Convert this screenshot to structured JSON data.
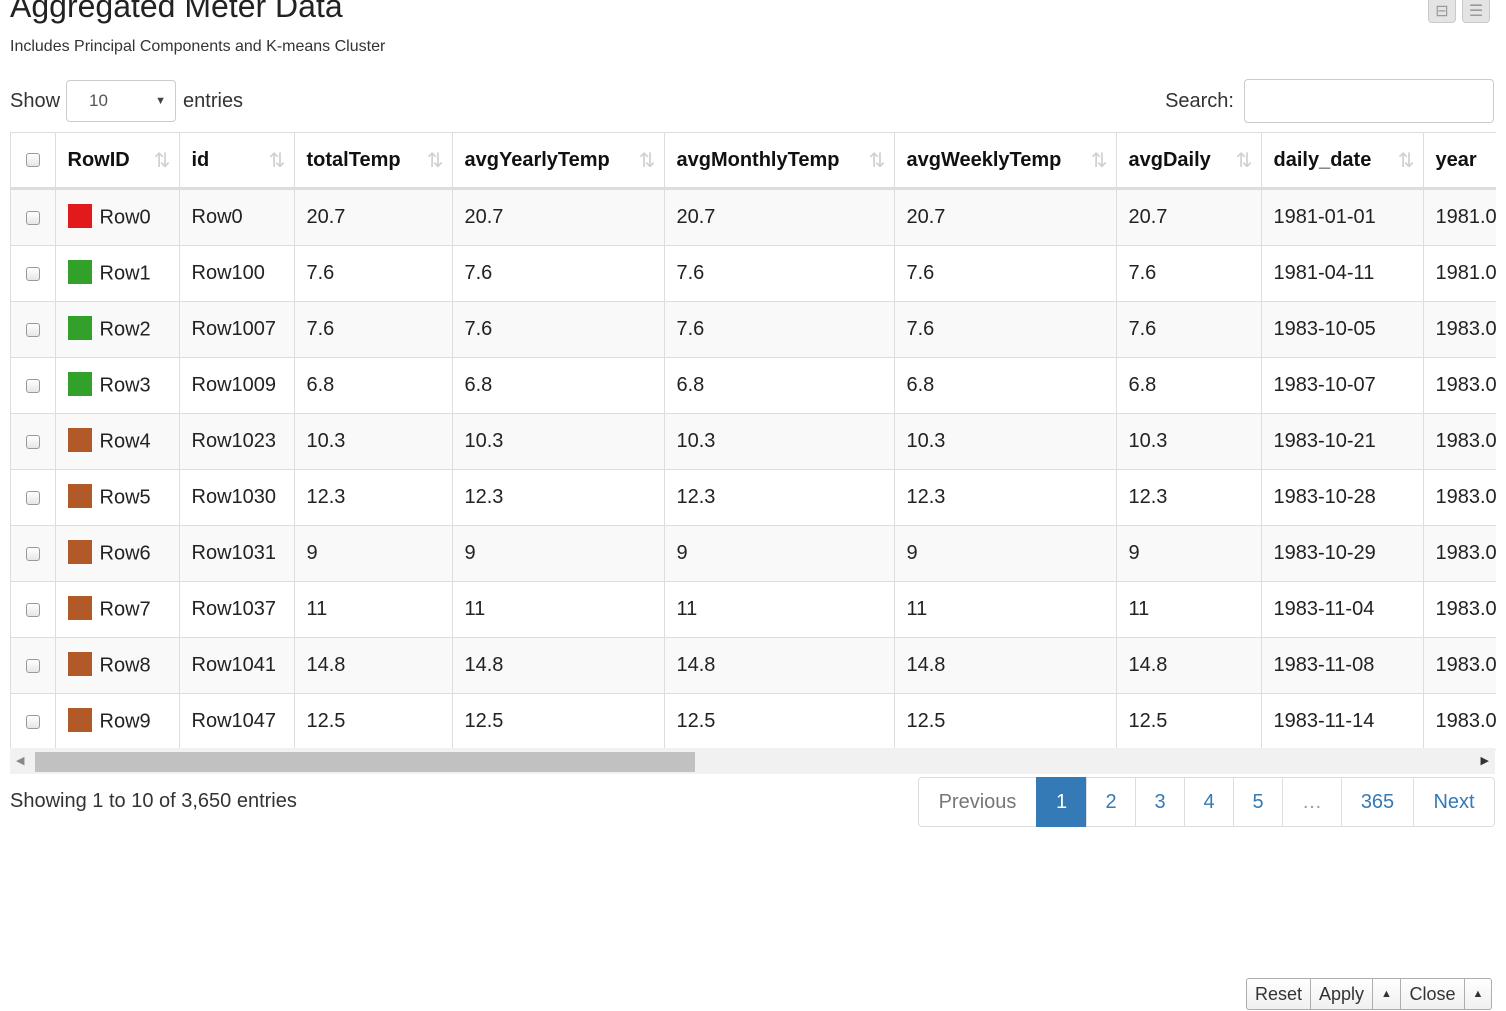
{
  "header": {
    "title": "Aggregated Meter Data",
    "subtitle": "Includes Principal Components and K-means Cluster",
    "icons": [
      "minimize-icon",
      "menu-icon"
    ]
  },
  "length": {
    "show_label": "Show",
    "selected": "10",
    "entries_label": "entries"
  },
  "search": {
    "label": "Search:",
    "value": ""
  },
  "table": {
    "columns": [
      "RowID",
      "id",
      "totalTemp",
      "avgYearlyTemp",
      "avgMonthlyTemp",
      "avgWeeklyTemp",
      "avgDaily",
      "daily_date",
      "year"
    ],
    "rows": [
      {
        "rowid": "Row0",
        "color": "#e31a1c",
        "id": "Row0",
        "totalTemp": "20.7",
        "avgYearlyTemp": "20.7",
        "avgMonthlyTemp": "20.7",
        "avgWeeklyTemp": "20.7",
        "avgDaily": "20.7",
        "daily_date": "1981-01-01",
        "year": "1981.0"
      },
      {
        "rowid": "Row1",
        "color": "#33a02c",
        "id": "Row100",
        "totalTemp": "7.6",
        "avgYearlyTemp": "7.6",
        "avgMonthlyTemp": "7.6",
        "avgWeeklyTemp": "7.6",
        "avgDaily": "7.6",
        "daily_date": "1981-04-11",
        "year": "1981.0"
      },
      {
        "rowid": "Row2",
        "color": "#33a02c",
        "id": "Row1007",
        "totalTemp": "7.6",
        "avgYearlyTemp": "7.6",
        "avgMonthlyTemp": "7.6",
        "avgWeeklyTemp": "7.6",
        "avgDaily": "7.6",
        "daily_date": "1983-10-05",
        "year": "1983.0"
      },
      {
        "rowid": "Row3",
        "color": "#33a02c",
        "id": "Row1009",
        "totalTemp": "6.8",
        "avgYearlyTemp": "6.8",
        "avgMonthlyTemp": "6.8",
        "avgWeeklyTemp": "6.8",
        "avgDaily": "6.8",
        "daily_date": "1983-10-07",
        "year": "1983.0"
      },
      {
        "rowid": "Row4",
        "color": "#b15928",
        "id": "Row1023",
        "totalTemp": "10.3",
        "avgYearlyTemp": "10.3",
        "avgMonthlyTemp": "10.3",
        "avgWeeklyTemp": "10.3",
        "avgDaily": "10.3",
        "daily_date": "1983-10-21",
        "year": "1983.0"
      },
      {
        "rowid": "Row5",
        "color": "#b15928",
        "id": "Row1030",
        "totalTemp": "12.3",
        "avgYearlyTemp": "12.3",
        "avgMonthlyTemp": "12.3",
        "avgWeeklyTemp": "12.3",
        "avgDaily": "12.3",
        "daily_date": "1983-10-28",
        "year": "1983.0"
      },
      {
        "rowid": "Row6",
        "color": "#b15928",
        "id": "Row1031",
        "totalTemp": "9",
        "avgYearlyTemp": "9",
        "avgMonthlyTemp": "9",
        "avgWeeklyTemp": "9",
        "avgDaily": "9",
        "daily_date": "1983-10-29",
        "year": "1983.0"
      },
      {
        "rowid": "Row7",
        "color": "#b15928",
        "id": "Row1037",
        "totalTemp": "11",
        "avgYearlyTemp": "11",
        "avgMonthlyTemp": "11",
        "avgWeeklyTemp": "11",
        "avgDaily": "11",
        "daily_date": "1983-11-04",
        "year": "1983.0"
      },
      {
        "rowid": "Row8",
        "color": "#b15928",
        "id": "Row1041",
        "totalTemp": "14.8",
        "avgYearlyTemp": "14.8",
        "avgMonthlyTemp": "14.8",
        "avgWeeklyTemp": "14.8",
        "avgDaily": "14.8",
        "daily_date": "1983-11-08",
        "year": "1983.0"
      },
      {
        "rowid": "Row9",
        "color": "#b15928",
        "id": "Row1047",
        "totalTemp": "12.5",
        "avgYearlyTemp": "12.5",
        "avgMonthlyTemp": "12.5",
        "avgWeeklyTemp": "12.5",
        "avgDaily": "12.5",
        "daily_date": "1983-11-14",
        "year": "1983.0"
      }
    ]
  },
  "info": "Showing 1 to 10 of 3,650 entries",
  "pagination": {
    "previous": "Previous",
    "pages": [
      "1",
      "2",
      "3",
      "4",
      "5"
    ],
    "ellipsis": "…",
    "last_page": "365",
    "next": "Next",
    "active_page": "1"
  },
  "bottom_bar": {
    "reset": "Reset",
    "apply": "Apply",
    "close": "Close"
  }
}
